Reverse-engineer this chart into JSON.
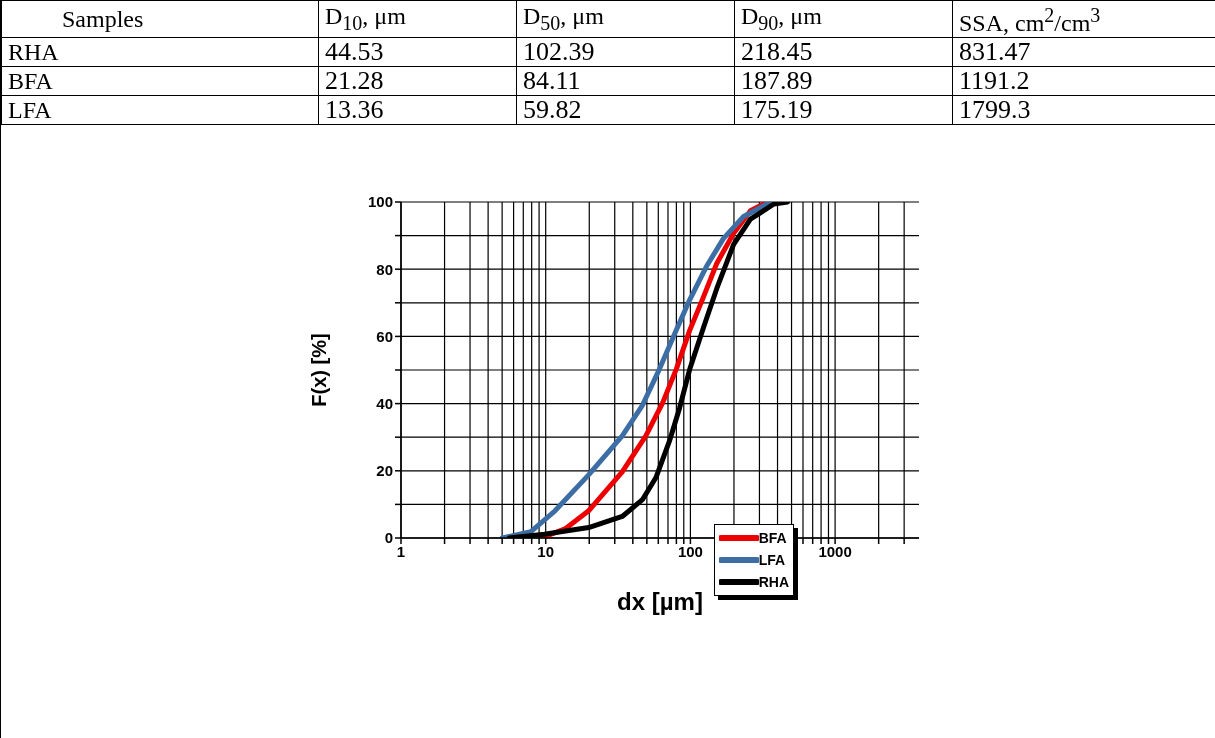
{
  "chart_data": [
    {
      "type": "other",
      "categories": [
        "Samples",
        "D$_{10}$, μm",
        "D$_{50}$, μm",
        "D$_{90}$, μm",
        "SSA, cm$^{2}$/cm$^{3}$"
      ],
      "y_categories": [
        "RHA",
        "BFA",
        "LFA"
      ],
      "cell_labels": [
        [
          "44.53",
          "102.39",
          "218.45",
          "831.47"
        ],
        [
          "21.28",
          "84.11",
          "187.89",
          "1191.2"
        ],
        [
          "13.36",
          "59.82",
          "175.19",
          "1799.3"
        ]
      ]
    },
    {
      "type": "line",
      "xlabel": "dx [µm]",
      "ylabel": "F(x) [%]",
      "log": "x",
      "grid": true,
      "legend": "bottom right",
      "marker": "none",
      "line_style": "solid",
      "xlim": [
        1,
        3800
      ],
      "xticks": [
        1,
        {
          "value": 2,
          "label": null
        },
        {
          "value": 3,
          "label": null
        },
        {
          "value": 4,
          "label": null
        },
        {
          "value": 5,
          "label": null
        },
        {
          "value": 6,
          "label": null
        },
        {
          "value": 7,
          "label": null
        },
        {
          "value": 8,
          "label": null
        },
        {
          "value": 9,
          "label": null
        },
        10,
        {
          "value": 20,
          "label": null
        },
        {
          "value": 30,
          "label": null
        },
        {
          "value": 40,
          "label": null
        },
        {
          "value": 50,
          "label": null
        },
        {
          "value": 60,
          "label": null
        },
        {
          "value": 70,
          "label": null
        },
        {
          "value": 80,
          "label": null
        },
        {
          "value": 90,
          "label": null
        },
        100,
        {
          "value": 200,
          "label": null
        },
        {
          "value": 300,
          "label": null
        },
        {
          "value": 400,
          "label": null
        },
        {
          "value": 500,
          "label": null
        },
        {
          "value": 600,
          "label": null
        },
        {
          "value": 700,
          "label": null
        },
        {
          "value": 800,
          "label": null
        },
        {
          "value": 900,
          "label": null
        },
        1000,
        {
          "value": 2000,
          "label": null
        },
        {
          "value": 3000,
          "label": null
        }
      ],
      "ylim": [
        0,
        100
      ],
      "yticks": [
        0,
        {
          "value": 10,
          "label": null
        },
        20,
        {
          "value": 30,
          "label": null
        },
        40,
        {
          "value": 50,
          "label": null
        },
        60,
        {
          "value": 70,
          "label": null
        },
        80,
        {
          "value": 90,
          "label": null
        },
        100
      ],
      "series": [
        {
          "name": "BFA",
          "color": "#ee0000",
          "x": [
            9.3,
            13.6,
            19.8,
            33.8,
            49.2,
            64.4,
            79.8,
            98.9,
            123,
            152,
            199,
            260,
            340
          ],
          "values": [
            0,
            2.7,
            8.1,
            19.7,
            30.4,
            40.3,
            50.2,
            61.8,
            71.7,
            81.7,
            90.7,
            97.4,
            100
          ]
        },
        {
          "name": "LFA",
          "color": "#3c6ea5",
          "x": [
            5.0,
            7.9,
            11.6,
            19.8,
            33.8,
            46.6,
            61,
            79.8,
            98.9,
            129,
            169,
            233,
            359
          ],
          "values": [
            0,
            1.9,
            8.1,
            18.8,
            30.4,
            39.5,
            50.2,
            61.8,
            70.9,
            80.8,
            89.1,
            95.7,
            100
          ]
        },
        {
          "name": "RHA",
          "color": "#000000",
          "x": [
            5.6,
            9.8,
            19.8,
            33.8,
            46.6,
            57.8,
            71.6,
            84.2,
            98.9,
            123,
            152,
            199,
            260,
            378,
            469
          ],
          "values": [
            0,
            1.1,
            3.1,
            6.4,
            11.4,
            18,
            28.8,
            38.7,
            50.2,
            62.6,
            74.2,
            87.4,
            94.9,
            99.4,
            100
          ]
        }
      ]
    }
  ]
}
